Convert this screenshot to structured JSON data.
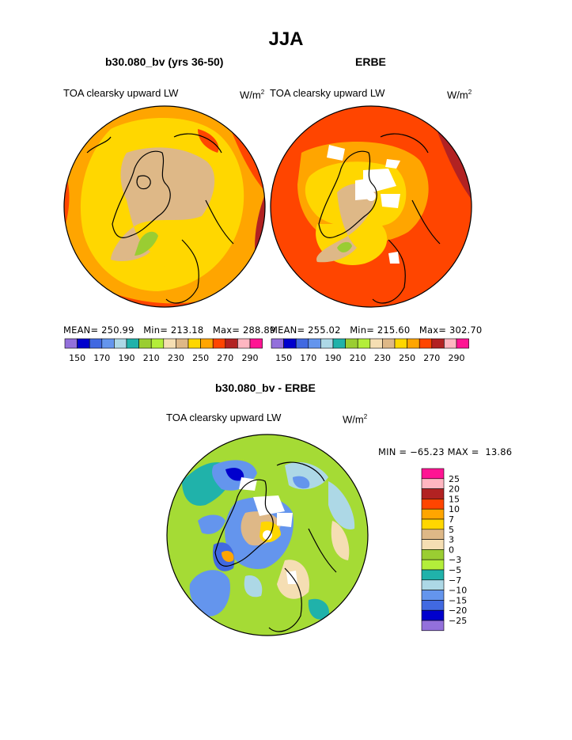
{
  "title": "JJA",
  "panels": [
    {
      "title": "b30.080_bv (yrs 36-50)",
      "subtitle": "TOA clearsky upward LW",
      "units": "W/m",
      "units_exp": "2",
      "mean_label": "MEAN=",
      "mean": "250.99",
      "min_label": "Min=",
      "min": "213.18",
      "max_label": "Max=",
      "max": "288.89"
    },
    {
      "title": "ERBE",
      "subtitle": "TOA clearsky upward LW",
      "units": "W/m",
      "units_exp": "2",
      "mean_label": "MEAN=",
      "mean": "255.02",
      "min_label": "Min=",
      "min": "215.60",
      "max_label": "Max=",
      "max": "302.70"
    }
  ],
  "abs_colorbar": {
    "colors": [
      "#9370db",
      "#0000cd",
      "#4169e1",
      "#6495ed",
      "#add8e6",
      "#20b2aa",
      "#9acd32",
      "#b3ee3a",
      "#f5deb3",
      "#deb887",
      "#ffd700",
      "#ffa500",
      "#ff4500",
      "#b22222",
      "#ffb6c1",
      "#ff1493"
    ],
    "labels": [
      "150",
      "170",
      "190",
      "210",
      "230",
      "250",
      "270",
      "290"
    ]
  },
  "diff": {
    "title": "b30.080_bv - ERBE",
    "subtitle": "TOA clearsky upward LW",
    "units": "W/m",
    "units_exp": "2",
    "minmax": "MIN = −65.23 MAX =  13.86",
    "colors_top_to_bottom": [
      "#ff1493",
      "#ffb6c1",
      "#b22222",
      "#ff4500",
      "#ffa500",
      "#ffd700",
      "#deb887",
      "#f5deb3",
      "#9acd32",
      "#b3ee3a",
      "#20b2aa",
      "#add8e6",
      "#6495ed",
      "#4169e1",
      "#0000cd",
      "#9370db"
    ],
    "labels_top_to_bottom": [
      "25",
      "20",
      "15",
      "10",
      "7",
      "5",
      "3",
      "0",
      "−3",
      "−5",
      "−7",
      "−10",
      "−15",
      "−20",
      "−25"
    ]
  }
}
